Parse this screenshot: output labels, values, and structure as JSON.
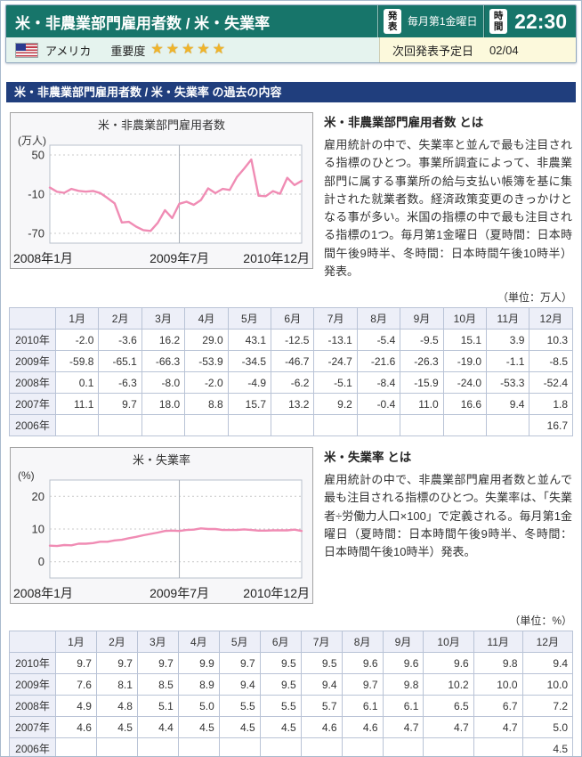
{
  "header": {
    "title": "米・非農業部門雇用者数 / 米・失業率",
    "release_badge": "発表",
    "release_schedule": "毎月第1金曜日",
    "time_badge": "時間",
    "time_value": "22:30",
    "country": "アメリカ",
    "importance_label": "重要度",
    "importance_stars": "★★★★★",
    "importance_value": "5/5",
    "next_release_label": "次回発表予定日",
    "next_release_date": "02/04"
  },
  "section_title": "米・非農業部門雇用者数 / 米・失業率 の過去の内容",
  "payroll": {
    "unit_label": "（単位：万人）",
    "description_title": "米・非農業部門雇用者数 とは",
    "description_body": "雇用統計の中で、失業率と並んで最も注目される指標のひとつ。事業所調査によって、非農業部門に属する事業所の給与支払い帳簿を基に集計された就業者数。経済政策変更のきっかけとなる事が多い。米国の指標の中で最も注目される指標の1つ。毎月第1金曜日（夏時間：日本時間午後9時半、冬時間：日本時間午後10時半）発表。",
    "table": {
      "columns": [
        "1月",
        "2月",
        "3月",
        "4月",
        "5月",
        "6月",
        "7月",
        "8月",
        "9月",
        "10月",
        "11月",
        "12月"
      ],
      "rows": [
        {
          "year": "2010年",
          "values": [
            "-2.0",
            "-3.6",
            "16.2",
            "29.0",
            "43.1",
            "-12.5",
            "-13.1",
            "-5.4",
            "-9.5",
            "15.1",
            "3.9",
            "10.3"
          ]
        },
        {
          "year": "2009年",
          "values": [
            "-59.8",
            "-65.1",
            "-66.3",
            "-53.9",
            "-34.5",
            "-46.7",
            "-24.7",
            "-21.6",
            "-26.3",
            "-19.0",
            "-1.1",
            "-8.5"
          ]
        },
        {
          "year": "2008年",
          "values": [
            "0.1",
            "-6.3",
            "-8.0",
            "-2.0",
            "-4.9",
            "-6.2",
            "-5.1",
            "-8.4",
            "-15.9",
            "-24.0",
            "-53.3",
            "-52.4"
          ]
        },
        {
          "year": "2007年",
          "values": [
            "11.1",
            "9.7",
            "18.0",
            "8.8",
            "15.7",
            "13.2",
            "9.2",
            "-0.4",
            "11.0",
            "16.6",
            "9.4",
            "1.8"
          ]
        },
        {
          "year": "2006年",
          "values": [
            "",
            "",
            "",
            "",
            "",
            "",
            "",
            "",
            "",
            "",
            "",
            "16.7"
          ]
        }
      ]
    }
  },
  "unemployment": {
    "unit_label": "（単位：%）",
    "description_title": "米・失業率 とは",
    "description_body": "雇用統計の中で、非農業部門雇用者数と並んで最も注目される指標のひとつ。失業率は、「失業者÷労働力人口×100」で定義される。毎月第1金曜日（夏時間：日本時間午後9時半、冬時間：日本時間午後10時半）発表。",
    "table": {
      "columns": [
        "1月",
        "2月",
        "3月",
        "4月",
        "5月",
        "6月",
        "7月",
        "8月",
        "9月",
        "10月",
        "11月",
        "12月"
      ],
      "rows": [
        {
          "year": "2010年",
          "values": [
            "9.7",
            "9.7",
            "9.7",
            "9.9",
            "9.7",
            "9.5",
            "9.5",
            "9.6",
            "9.6",
            "9.6",
            "9.8",
            "9.4"
          ]
        },
        {
          "year": "2009年",
          "values": [
            "7.6",
            "8.1",
            "8.5",
            "8.9",
            "9.4",
            "9.5",
            "9.4",
            "9.7",
            "9.8",
            "10.2",
            "10.0",
            "10.0"
          ]
        },
        {
          "year": "2008年",
          "values": [
            "4.9",
            "4.8",
            "5.1",
            "5.0",
            "5.5",
            "5.5",
            "5.7",
            "6.1",
            "6.1",
            "6.5",
            "6.7",
            "7.2"
          ]
        },
        {
          "year": "2007年",
          "values": [
            "4.6",
            "4.5",
            "4.4",
            "4.5",
            "4.5",
            "4.5",
            "4.6",
            "4.6",
            "4.7",
            "4.7",
            "4.7",
            "5.0"
          ]
        },
        {
          "year": "2006年",
          "values": [
            "",
            "",
            "",
            "",
            "",
            "",
            "",
            "",
            "",
            "",
            "",
            "4.5"
          ]
        }
      ]
    }
  },
  "chart_data": [
    {
      "type": "line",
      "title": "米・非農業部門雇用者数",
      "unit": "(万人)",
      "ylabel": "万人",
      "x_labels": [
        "2008年1月",
        "2009年7月",
        "2010年12月"
      ],
      "x_categories": [
        "2008/1",
        "2008/2",
        "2008/3",
        "2008/4",
        "2008/5",
        "2008/6",
        "2008/7",
        "2008/8",
        "2008/9",
        "2008/10",
        "2008/11",
        "2008/12",
        "2009/1",
        "2009/2",
        "2009/3",
        "2009/4",
        "2009/5",
        "2009/6",
        "2009/7",
        "2009/8",
        "2009/9",
        "2009/10",
        "2009/11",
        "2009/12",
        "2010/1",
        "2010/2",
        "2010/3",
        "2010/4",
        "2010/5",
        "2010/6",
        "2010/7",
        "2010/8",
        "2010/9",
        "2010/10",
        "2010/11",
        "2010/12"
      ],
      "values": [
        0.1,
        -6.3,
        -8.0,
        -2.0,
        -4.9,
        -6.2,
        -5.1,
        -8.4,
        -15.9,
        -24.0,
        -53.3,
        -52.4,
        -59.8,
        -65.1,
        -66.3,
        -53.9,
        -34.5,
        -46.7,
        -24.7,
        -21.6,
        -26.3,
        -19.0,
        -1.1,
        -8.5,
        -2.0,
        -3.6,
        16.2,
        29.0,
        43.1,
        -12.5,
        -13.1,
        -5.4,
        -9.5,
        15.1,
        3.9,
        10.3
      ],
      "y_ticks": [
        50,
        -10,
        -70
      ],
      "ylim": [
        -85,
        65
      ],
      "grid": "dashed-horizontal",
      "center_line_index": 18,
      "line_color": "#f08cb4"
    },
    {
      "type": "line",
      "title": "米・失業率",
      "unit": "(%)",
      "ylabel": "%",
      "x_labels": [
        "2008年1月",
        "2009年7月",
        "2010年12月"
      ],
      "x_categories": [
        "2008/1",
        "2008/2",
        "2008/3",
        "2008/4",
        "2008/5",
        "2008/6",
        "2008/7",
        "2008/8",
        "2008/9",
        "2008/10",
        "2008/11",
        "2008/12",
        "2009/1",
        "2009/2",
        "2009/3",
        "2009/4",
        "2009/5",
        "2009/6",
        "2009/7",
        "2009/8",
        "2009/9",
        "2009/10",
        "2009/11",
        "2009/12",
        "2010/1",
        "2010/2",
        "2010/3",
        "2010/4",
        "2010/5",
        "2010/6",
        "2010/7",
        "2010/8",
        "2010/9",
        "2010/10",
        "2010/11",
        "2010/12"
      ],
      "values": [
        4.9,
        4.8,
        5.1,
        5.0,
        5.5,
        5.5,
        5.7,
        6.1,
        6.1,
        6.5,
        6.7,
        7.2,
        7.6,
        8.1,
        8.5,
        8.9,
        9.4,
        9.5,
        9.4,
        9.7,
        9.8,
        10.2,
        10.0,
        10.0,
        9.7,
        9.7,
        9.7,
        9.9,
        9.7,
        9.5,
        9.5,
        9.6,
        9.6,
        9.6,
        9.8,
        9.4
      ],
      "y_ticks": [
        20,
        10,
        0
      ],
      "ylim": [
        -5,
        25
      ],
      "grid": "dashed-horizontal",
      "center_line_index": 18,
      "line_color": "#f08cb4"
    }
  ],
  "colors": {
    "header_teal": "#17756a",
    "section_bar_blue": "#203e7d",
    "chart_line_pink": "#f08cb4",
    "table_header_bg": "#edeff8",
    "next_release_bg": "#fcf9dc",
    "country_row_bg": "#e5f3ee",
    "star_gold": "#efb42a"
  }
}
